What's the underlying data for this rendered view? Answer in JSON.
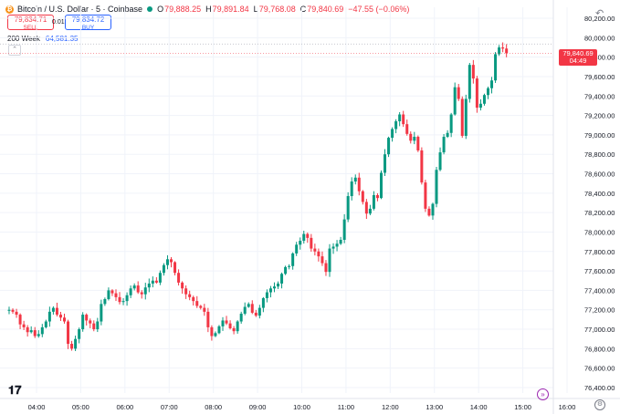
{
  "legend": {
    "symbol": "Bitcoin / U.S. Dollar · 5 · Coinbase",
    "coin_glyph": "₿",
    "open_label": "O",
    "open": "79,888.25",
    "high_label": "H",
    "high": "79,891.84",
    "low_label": "L",
    "low": "79,768.08",
    "close_label": "C",
    "close": "79,840.69",
    "change": "−47.55 (−0.06%)"
  },
  "trade": {
    "sell_price": "79,834.71",
    "sell_label": "SELL",
    "spread": "0.01",
    "buy_price": "79,834.72",
    "buy_label": "BUY"
  },
  "indicator": {
    "label": "200 Week",
    "value": "64,581.35"
  },
  "price_badge": {
    "price": "79,840.69",
    "countdown": "04:49"
  },
  "icons": {
    "logo": "tradingview-logo",
    "goto": "goto-realtime-icon",
    "settings": "settings-icon",
    "undo": "undo-icon"
  },
  "colors": {
    "up": "#089981",
    "down": "#f23645",
    "grid": "#f0f3fa",
    "ma_line": "#2962ff"
  },
  "chart_data": {
    "type": "candlestick",
    "yticks": [
      "80,200.00",
      "80,000.00",
      "79,800.00",
      "79,600.00",
      "79,400.00",
      "79,200.00",
      "79,000.00",
      "78,800.00",
      "78,600.00",
      "78,400.00",
      "78,200.00",
      "78,000.00",
      "77,800.00",
      "77,600.00",
      "77,400.00",
      "77,200.00",
      "77,000.00",
      "76,800.00",
      "76,600.00",
      "76,400.00"
    ],
    "ylim": [
      76330,
      80300
    ],
    "xticks": [
      "04:00",
      "05:00",
      "06:00",
      "07:00",
      "08:00",
      "09:00",
      "10:00",
      "11:00",
      "12:00",
      "13:00",
      "14:00",
      "15:00",
      "16:00"
    ],
    "xtick_hours": [
      4,
      5,
      6,
      7,
      8,
      9,
      10,
      11,
      12,
      13,
      14,
      15,
      16
    ],
    "xlim_hours": [
      3.35,
      16.4
    ],
    "ma_value": 79935,
    "closes": [
      77200,
      77180,
      77150,
      77050,
      77020,
      76970,
      76990,
      76930,
      76950,
      77020,
      77080,
      77180,
      77220,
      77150,
      77120,
      77080,
      76850,
      76800,
      76900,
      77000,
      77150,
      77090,
      77060,
      77000,
      77080,
      77260,
      77310,
      77400,
      77370,
      77330,
      77280,
      77290,
      77350,
      77420,
      77450,
      77380,
      77360,
      77430,
      77470,
      77500,
      77480,
      77580,
      77660,
      77720,
      77690,
      77580,
      77480,
      77420,
      77360,
      77330,
      77290,
      77240,
      77220,
      77180,
      77020,
      76930,
      76960,
      77030,
      77090,
      77060,
      77010,
      76980,
      77080,
      77160,
      77230,
      77260,
      77170,
      77140,
      77220,
      77320,
      77380,
      77420,
      77440,
      77470,
      77570,
      77640,
      77650,
      77780,
      77870,
      77910,
      77980,
      77940,
      77830,
      77800,
      77750,
      77680,
      77590,
      77830,
      77850,
      77880,
      77920,
      78130,
      78370,
      78520,
      78560,
      78420,
      78310,
      78190,
      78240,
      78380,
      78350,
      78610,
      78800,
      78970,
      79060,
      79140,
      79210,
      79110,
      79010,
      78940,
      78980,
      78840,
      78510,
      78240,
      78170,
      78290,
      78640,
      78820,
      78980,
      79020,
      79210,
      79490,
      79370,
      78990,
      79370,
      79720,
      79580,
      79280,
      79320,
      79410,
      79480,
      79560,
      79830,
      79900,
      79888,
      79840
    ],
    "open": 77190,
    "low_anchor": 76650,
    "high_anchor": 80000
  }
}
